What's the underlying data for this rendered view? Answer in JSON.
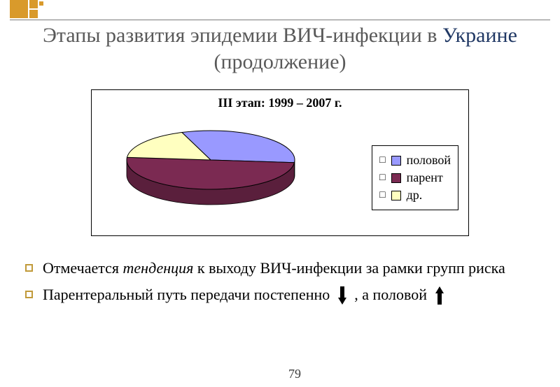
{
  "decoration": {
    "color": "#d99a2b"
  },
  "title": {
    "pre": "Этапы развития эпидемии ВИЧ-инфекции в ",
    "em": "Украине",
    "post": " (продолжение)",
    "fontsize": 30,
    "color": "#595959",
    "em_color": "#203864"
  },
  "chart": {
    "type": "pie-3d",
    "title": "III этап: 1999 – 2007 г.",
    "title_fontsize": 18,
    "background": "#ffffff",
    "border_color": "#000000",
    "slices": [
      {
        "label": "половой",
        "value": 32,
        "color": "#9999ff",
        "side_color": "#6666cc"
      },
      {
        "label": "парент",
        "value": 50,
        "color": "#7b2a52",
        "side_color": "#5a1f3c"
      },
      {
        "label": "др.",
        "value": 18,
        "color": "#ffffc0",
        "side_color": "#d4d490"
      }
    ],
    "legend": {
      "border_color": "#000000",
      "fontsize": 18,
      "marker": "□"
    }
  },
  "bullets": [
    {
      "pre": "Отмечается ",
      "ital": "тенденция",
      "post": " к выходу ВИЧ-инфекции за рамки групп риска"
    },
    {
      "pre": "Парентеральный путь передачи постепенно ",
      "arrow1_dir": "down",
      "mid": " , а половой ",
      "arrow2_dir": "up"
    }
  ],
  "bullet_style": {
    "fontsize": 22,
    "marker_color": "#c19a3a"
  },
  "arrow_color": "#000000",
  "page_number": "79"
}
